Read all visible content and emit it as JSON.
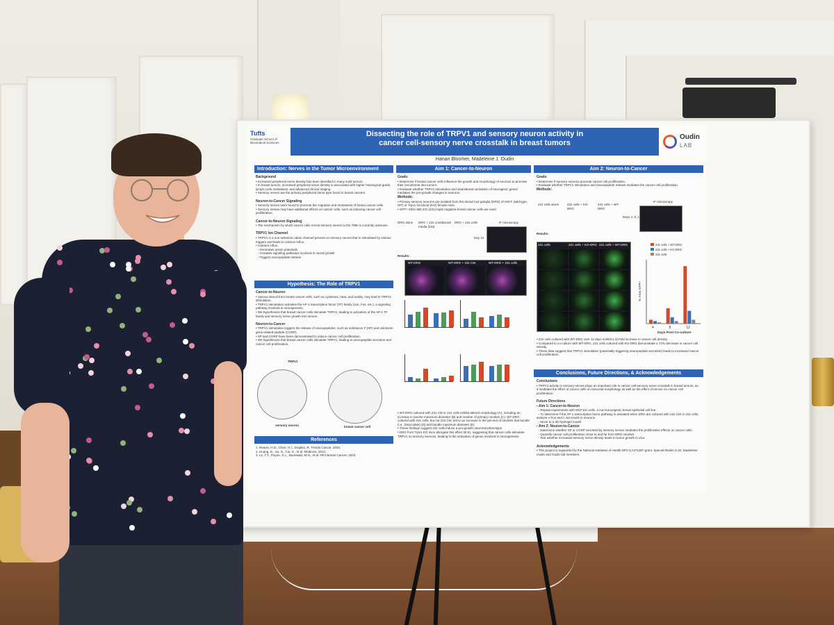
{
  "poster": {
    "title_line1": "Dissecting the role of TRPV1 and sensory neuron activity in",
    "title_line2": "cancer cell-sensory nerve crosstalk in breast tumors",
    "authors": "Hanan Bloomer, Madeleine J. Oudin",
    "logo_left": "Tufts",
    "logo_left_sub": "Graduate School of Biomedical Sciences",
    "logo_right_name": "Oudin",
    "logo_right_sub": "LAB",
    "sections": {
      "intro": "Introduction: Nerves in the Tumor Microenvironment",
      "aim1": "Aim 1: Cancer-to-Neuron",
      "aim2": "Aim 2: Neuron-to-Cancer",
      "hypothesis": "Hypothesis: The Role of TRPV1",
      "references": "References",
      "conclusions": "Conclusions, Future Directions, & Acknowledgements"
    },
    "intro": {
      "background_head": "Background",
      "bg1": "Increased peripheral nerve density has been identified in many solid tumors.",
      "bg2": "In breast tumors, increased peripheral nerve density is associated with higher histological grade, lymph node metastasis, and advanced clinical staging.",
      "bg3": "Sensory nerves are the primary peripheral nerve type found in breast cancers.",
      "n2c_head": "Neuron-to-Cancer Signaling",
      "n2c1": "Sensory nerves were found to promote the migration and metastasis of breast cancer cells.",
      "n2c2": "Sensory nerves may have additional effects on cancer cells, such as inducing cancer cell proliferation.",
      "c2n_head": "Cancer-to-Neuron Signaling",
      "c2n1": "The mechanism by which cancer cells recruit sensory nerves to the TME is currently unknown.",
      "trpv1_head": "TRPV1 Ion Channel",
      "trpv1_1": "TRPV1 is a non-selective cation channel present on sensory nerves that is stimulated by various triggers and leads to calcium influx.",
      "trpv1_2": "Calcium influx:",
      "trpv1_3": "Generates action potentials",
      "trpv1_4": "Activates signaling pathways involved in neural growth",
      "trpv1_5": "Triggers neuropeptide release"
    },
    "hypothesis": {
      "c2n_head": "Cancer-to-Neuron",
      "c2n1": "Various stimuli from breast cancer cells, such as cytokines, heat, and acidity, may lead to TRPV1 stimulation.",
      "c2n2": "TRPV1 stimulation activates the AP-1 transcription factor (TF) family (Jun, Fos, etc.), a signaling pathway involved in neurogenesis.",
      "c2n3": "We hypothesize that breast cancer cells stimulate TRPV1, leading to activation of the AP-1 TF family and sensory nerve growth into tumors.",
      "n2c_head": "Neuron-to-Cancer",
      "n2c1": "TRPV1 stimulation triggers the release of neuropeptides, such as substance P (SP) and calcitonin gene-related peptide (CGRP).",
      "n2c2": "SP and CGRP have been demonstrated to induce cancer cell proliferation.",
      "n2c3": "We hypothesize that breast cancer cells stimulate TRPV1, leading to neuropeptide secretion and cancer cell proliferation.",
      "diagram_label_neuron": "sensory neuron",
      "diagram_label_cancer": "breast cancer cell",
      "diagram_label_trpv1": "TRPV1"
    },
    "references": {
      "r1": "1. Reavis, H.D., Chen, H.I., Drapkin, R. Trends Cancer. 2020.",
      "r2": "2. Huang, D., Su, S., Cui, X., et al. Medicine. 2014.",
      "r3": "3. Le, T.T., Payne, S.L., Buckwald, M.N., et al. NPJ Breast Cancer. 2022."
    },
    "aim1": {
      "goals_head": "Goals:",
      "g1": "Determine if breast cancer cells influence the growth and morphology of neurons to promote their recruitment into tumors.",
      "g2": "Evaluate whether TRPV1 stimulation and downstream activation of neurogenic genes mediates the pro-growth changes in neurons.",
      "methods_head": "Methods:",
      "m1": "Primary sensory neurons are isolated from the dorsal root ganglia (DRG) of SW-F (wild-type, WT) or Trpv1 knockout (KO) female mice.",
      "m2": "GFP+ MDA-MB-231 (231) triple negative breast cancer cells are used",
      "results_head": "Results:",
      "method_labels": [
        "DRG alone",
        "DRG + 231 conditioned media (CM)",
        "DRG + 231 cells",
        "Day 12",
        "IF microscopy"
      ],
      "img_labels": [
        "WT-DRG",
        "WT-DRG + 231 CM",
        "WT-DRG + 231 cells"
      ],
      "r1": "WT-DRG cultured with 231 CM or 231 cells exhibit altered morphology (A), including an increase in neurite maximum diameter (B) and number of primary neurites (C). WT-DRG cultured with 231 cells, but not 231 CM, led to an increase in the percent of neurites that bundle (i.e., fasciculate) (D) and bundle maximum diameter (E).",
      "r2": "These findings suggest 231 cells induce a pro-growth neuronal phenotype.",
      "r3": "DRG from Trpv1 KO mice abrogate this effect (B-E), suggesting that cancer cells stimulate TRPV1 on sensory neurons, leading to the activation of genes involved in neurogenesis."
    },
    "aim2": {
      "goals_head": "Goals:",
      "g1": "Determine if sensory neurons promote cancer cell proliferation.",
      "g2": "Evaluate whether TRPV1 stimulation and neuropeptide release mediates the cancer cell proliferation.",
      "methods_head": "Methods:",
      "method_labels": [
        "231 cells alone",
        "231 cells + KO-DRG",
        "231 cells + WT-DRG",
        "Days 4, 8, 12",
        "IF microscopy"
      ],
      "results_head": "Results:",
      "grid_labels": [
        "231 cells",
        "231 cells + KO-DRG",
        "231 cells + WT-DRG"
      ],
      "legend": [
        "231 cells + WT-DRG",
        "231 cells + KO-DRG",
        "231 cells"
      ],
      "y_axis": "% Area GFP+",
      "x_axis": "Days Post Co-culture",
      "r1": "231 cells cultured with WT-DRG over 12 days exhibit a 33-fold increase in cancer cell density.",
      "r2": "Compared to co-culture with WT-DRG, 231 cells cultured with KO-DRG demonstrate a 72% decrease in cancer cell density.",
      "r3": "These data suggest that TRPV1 stimulation (potentially triggering neuropeptide secretion) leads to increased cancer cell proliferation."
    },
    "conclusions": {
      "head": "Conclusions",
      "c1": "TRPV1 activity in sensory nerves plays an important role in cancer cell-sensory nerve crosstalk in breast tumors, as it mediates the effect of cancer cells on neuronal morphology as well as the effect of nerves on cancer cell proliferation.",
      "fd_head": "Future Directions",
      "a1_head": "Aim 1: Cancer-to-Neuron",
      "a1_1": "Repeat experiments with MCF10A cells, a non-tumorigenic breast epithelial cell line.",
      "a1_2": "To determine if the AP-1 transcription factor pathway is activated when DRG are cultured with 231 CM or 231 cells, analyze c-Fos and c-Jun levels in neurons.",
      "a1_3": "Move to a 3D hydrogel model.",
      "a2_head": "Aim 2: Neuron-to-Cancer",
      "a2_1": "Determine whether SP or CGRP secreted by sensory nerves mediates the proliferative effects on cancer cells.",
      "a2_2": "Quantify cancer cell proliferation close to and far from DRG neurites.",
      "a2_3": "Test whether increased sensory nerve density leads to tumor growth in vivo.",
      "ack_head": "Acknowledgements",
      "ack": "This project is supported by the National Institutes of Health DP2-CA271387 grant. Special thanks to Dr. Madeleine Oudin and Oudin lab members."
    }
  },
  "colors": {
    "section_blue": "#2f64b4",
    "bar_blue": "#3b6fb8",
    "bar_green": "#4f9a5a",
    "bar_red": "#d24a2a",
    "shirt": "#1c2033",
    "floor": "#7a4c2e"
  },
  "chart_aim2": {
    "type": "bar",
    "categories": [
      "4",
      "8",
      "12"
    ],
    "series": [
      {
        "name": "231 cells + WT-DRG",
        "values": [
          0.3,
          1.2,
          4.5
        ]
      },
      {
        "name": "231 cells + KO-DRG",
        "values": [
          0.2,
          0.5,
          1.0
        ]
      },
      {
        "name": "231 cells",
        "values": [
          0.1,
          0.2,
          0.3
        ]
      }
    ],
    "xlabel": "Days Post Co-culture",
    "ylabel": "% Area GFP+"
  }
}
